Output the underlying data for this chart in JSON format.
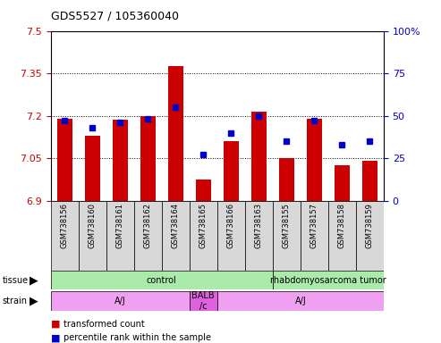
{
  "title": "GDS5527 / 105360040",
  "samples": [
    "GSM738156",
    "GSM738160",
    "GSM738161",
    "GSM738162",
    "GSM738164",
    "GSM738165",
    "GSM738166",
    "GSM738163",
    "GSM738155",
    "GSM738157",
    "GSM738158",
    "GSM738159"
  ],
  "bar_values": [
    7.19,
    7.13,
    7.185,
    7.2,
    7.375,
    6.975,
    7.11,
    7.215,
    7.05,
    7.19,
    7.025,
    7.04
  ],
  "dot_percentile": [
    47,
    43,
    46,
    48,
    55,
    27,
    40,
    50,
    35,
    47,
    33,
    35
  ],
  "ylim_left": [
    6.9,
    7.5
  ],
  "ylim_right": [
    0,
    100
  ],
  "yticks_left": [
    6.9,
    7.05,
    7.2,
    7.35,
    7.5
  ],
  "yticks_right": [
    0,
    25,
    50,
    75,
    100
  ],
  "ytick_labels_left": [
    "6.9",
    "7.05",
    "7.2",
    "7.35",
    "7.5"
  ],
  "ytick_labels_right": [
    "0",
    "25",
    "50",
    "75",
    "100%"
  ],
  "bar_color": "#cc0000",
  "dot_color": "#0000cc",
  "bar_bottom": 6.9,
  "hgrid_vals": [
    7.05,
    7.2,
    7.35
  ],
  "tissue_labels": [
    "control",
    "rhabdomyosarcoma tumor"
  ],
  "tissue_col_ranges": [
    [
      0,
      8
    ],
    [
      8,
      12
    ]
  ],
  "tissue_color": "#aaeaaa",
  "strain_labels": [
    "A/J",
    "BALB\n/c",
    "A/J"
  ],
  "strain_col_ranges": [
    [
      0,
      5
    ],
    [
      5,
      6
    ],
    [
      6,
      12
    ]
  ],
  "strain_color": "#f0a0f0",
  "strain_color2": "#e060e0",
  "legend_red": "transformed count",
  "legend_blue": "percentile rank within the sample",
  "left_axis_color": "#cc0000",
  "right_axis_color": "#0000cc"
}
